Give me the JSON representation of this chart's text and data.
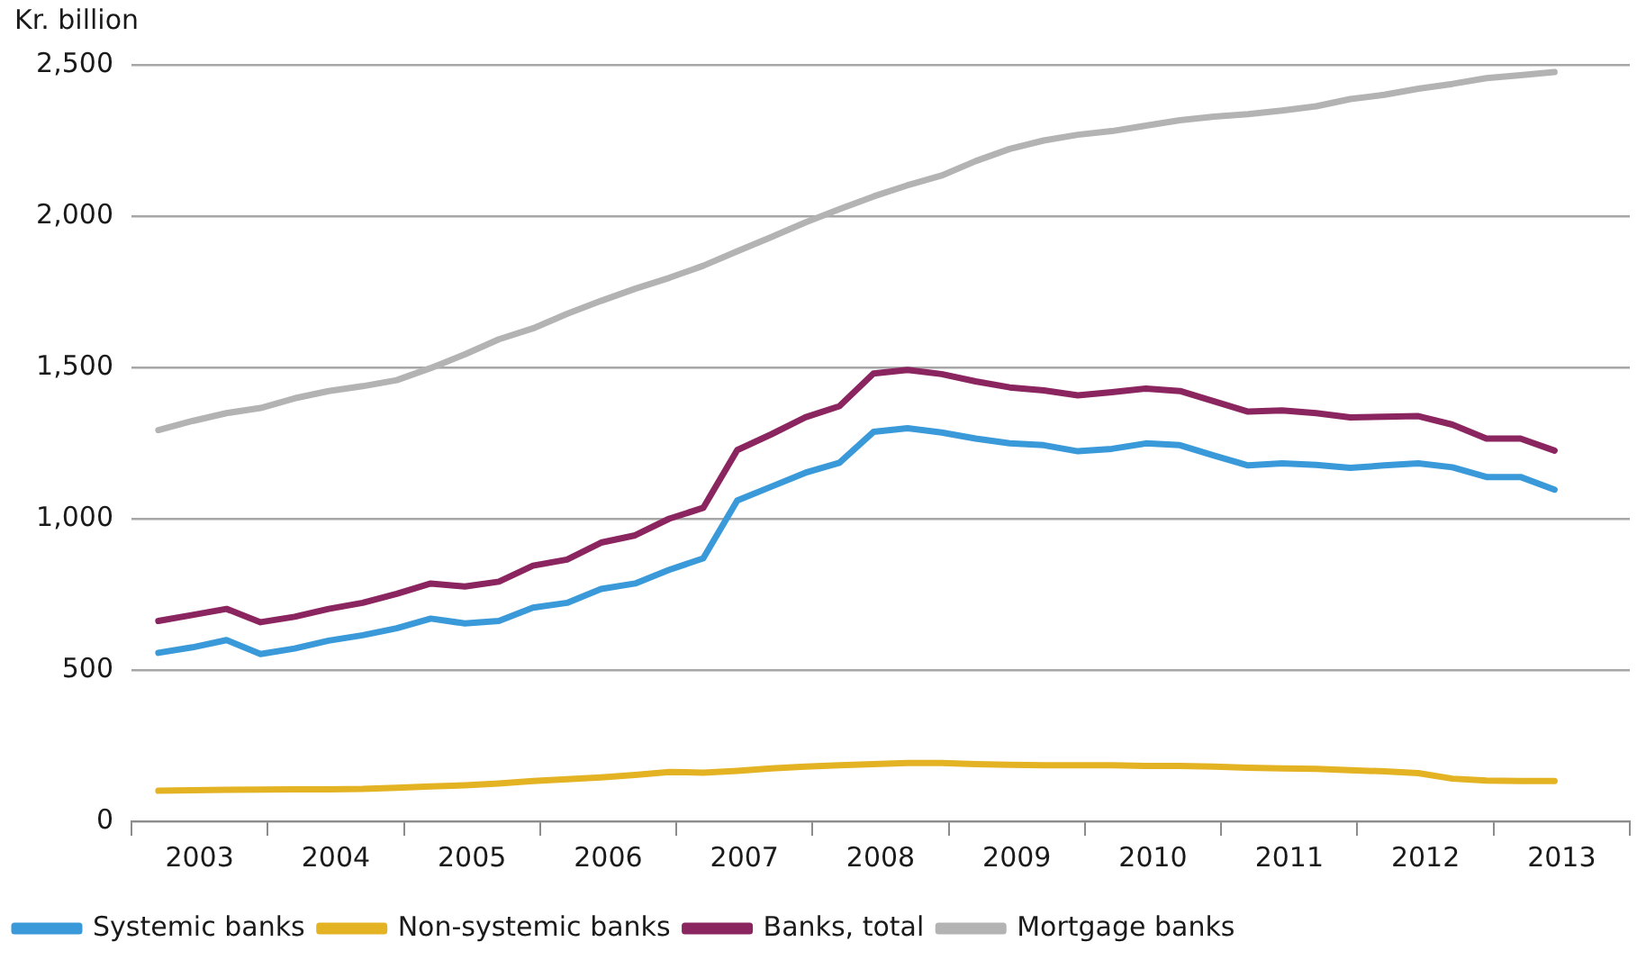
{
  "chart_data": {
    "type": "line",
    "ylabel": "Kr. billion",
    "categories": [
      null,
      "2003",
      null,
      null,
      null,
      "2004",
      null,
      null,
      null,
      "2005",
      null,
      null,
      null,
      "2006",
      null,
      null,
      null,
      "2007",
      null,
      null,
      null,
      "2008",
      null,
      null,
      null,
      "2009",
      null,
      null,
      null,
      "2010",
      null,
      null,
      null,
      "2011",
      null,
      null,
      null,
      "2012",
      null,
      null,
      null,
      "2013",
      null,
      null
    ],
    "series": [
      {
        "name": "Systemic banks",
        "color": "#3a9ad9",
        "values": [
          557,
          575,
          599,
          553,
          571,
          597,
          615,
          638,
          670,
          654,
          662,
          706,
          722,
          768,
          786,
          831,
          869,
          1060,
          1106,
          1152,
          1185,
          1287,
          1299,
          1285,
          1265,
          1249,
          1243,
          1223,
          1231,
          1249,
          1243,
          1209,
          1176,
          1183,
          1178,
          1168,
          1176,
          1183,
          1170,
          1138,
          1138,
          1096,
          null,
          null
        ]
      },
      {
        "name": "Non-systemic banks",
        "color": "#e3b324",
        "values": [
          101,
          103,
          104,
          105,
          106,
          106,
          107,
          111,
          115,
          119,
          125,
          133,
          139,
          145,
          153,
          163,
          161,
          167,
          175,
          181,
          185,
          189,
          193,
          193,
          189,
          187,
          185,
          185,
          185,
          183,
          183,
          181,
          177,
          175,
          173,
          169,
          165,
          159,
          141,
          135,
          133,
          133,
          null,
          null
        ]
      },
      {
        "name": "Banks, total",
        "color": "#8b2560",
        "values": [
          662,
          682,
          702,
          658,
          676,
          702,
          722,
          752,
          786,
          776,
          792,
          845,
          865,
          921,
          945,
          1000,
          1036,
          1227,
          1279,
          1335,
          1372,
          1480,
          1492,
          1478,
          1454,
          1434,
          1424,
          1408,
          1418,
          1430,
          1422,
          1388,
          1354,
          1358,
          1349,
          1335,
          1337,
          1339,
          1311,
          1265,
          1265,
          1225,
          null,
          null
        ]
      },
      {
        "name": "Mortgage banks",
        "color": "#b3b3b3",
        "values": [
          1293,
          1323,
          1349,
          1366,
          1398,
          1422,
          1438,
          1458,
          1498,
          1543,
          1593,
          1629,
          1677,
          1720,
          1760,
          1796,
          1836,
          1884,
          1931,
          1979,
          2023,
          2065,
          2102,
          2134,
          2182,
          2222,
          2250,
          2269,
          2281,
          2299,
          2317,
          2329,
          2337,
          2349,
          2363,
          2387,
          2401,
          2421,
          2437,
          2456,
          2466,
          2476,
          null,
          null
        ]
      }
    ],
    "ylim": [
      0,
      2500
    ],
    "yticks": [
      0,
      500,
      {
        "value": 1000,
        "label": "1,000"
      },
      {
        "value": 1500,
        "label": "1,500"
      },
      {
        "value": 2000,
        "label": "2,000"
      },
      {
        "value": 2500,
        "label": "2,500"
      }
    ],
    "grid": "y",
    "legend": "bottom",
    "marker": "none",
    "line_style": "solid"
  }
}
